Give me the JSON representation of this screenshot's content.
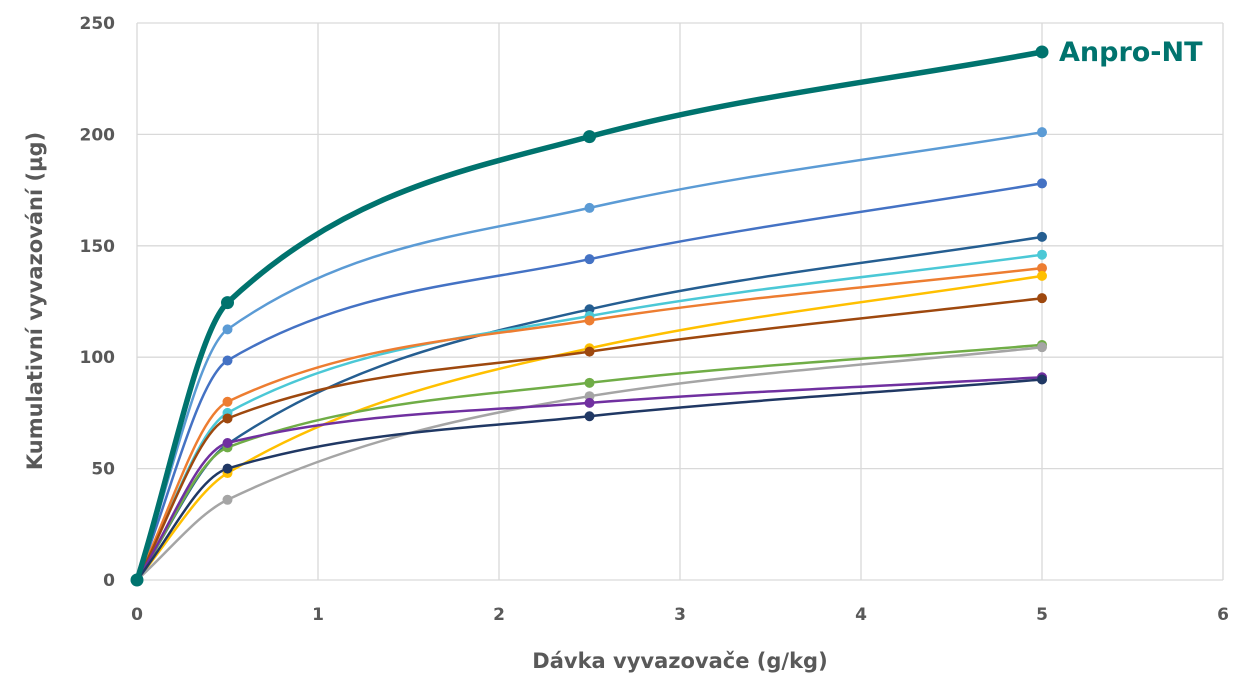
{
  "chart_data": {
    "type": "line",
    "title": "",
    "xlabel": "Dávka vyvazovače (g/kg)",
    "ylabel": "Kumulativní vyvazování (µg)",
    "xlim": [
      0,
      6
    ],
    "ylim": [
      0,
      250
    ],
    "xticks": [
      0,
      1,
      2,
      3,
      4,
      5,
      6
    ],
    "yticks": [
      0,
      50,
      100,
      150,
      200,
      250
    ],
    "grid": true,
    "legend": "none",
    "x": [
      0,
      0.5,
      2.5,
      5
    ],
    "series": [
      {
        "name": "Anpro-NT",
        "color": "#00736E",
        "emphasis": true,
        "values": [
          0,
          124.5,
          199,
          237
        ]
      },
      {
        "color": "#5B9BD5",
        "values": [
          0,
          112.5,
          167,
          201
        ]
      },
      {
        "color": "#4472C4",
        "values": [
          0,
          98.5,
          144,
          178
        ]
      },
      {
        "color": "#255E91",
        "values": [
          0,
          61,
          121.5,
          154
        ]
      },
      {
        "color": "#4BC8D6",
        "values": [
          0,
          75,
          118.5,
          146
        ]
      },
      {
        "color": "#ED7D31",
        "values": [
          0,
          80,
          116.5,
          140
        ]
      },
      {
        "color": "#FFC000",
        "values": [
          0,
          48,
          104,
          136.5
        ]
      },
      {
        "color": "#9E480E",
        "values": [
          0,
          72.5,
          102.5,
          126.5
        ]
      },
      {
        "color": "#70AD47",
        "values": [
          0,
          59.5,
          88.5,
          105.5
        ]
      },
      {
        "color": "#A5A5A5",
        "values": [
          0,
          36,
          82.5,
          104.5
        ]
      },
      {
        "color": "#7030A0",
        "values": [
          0,
          61.5,
          79.5,
          91
        ]
      },
      {
        "color": "#203864",
        "values": [
          0,
          50,
          73.5,
          90
        ]
      }
    ]
  }
}
